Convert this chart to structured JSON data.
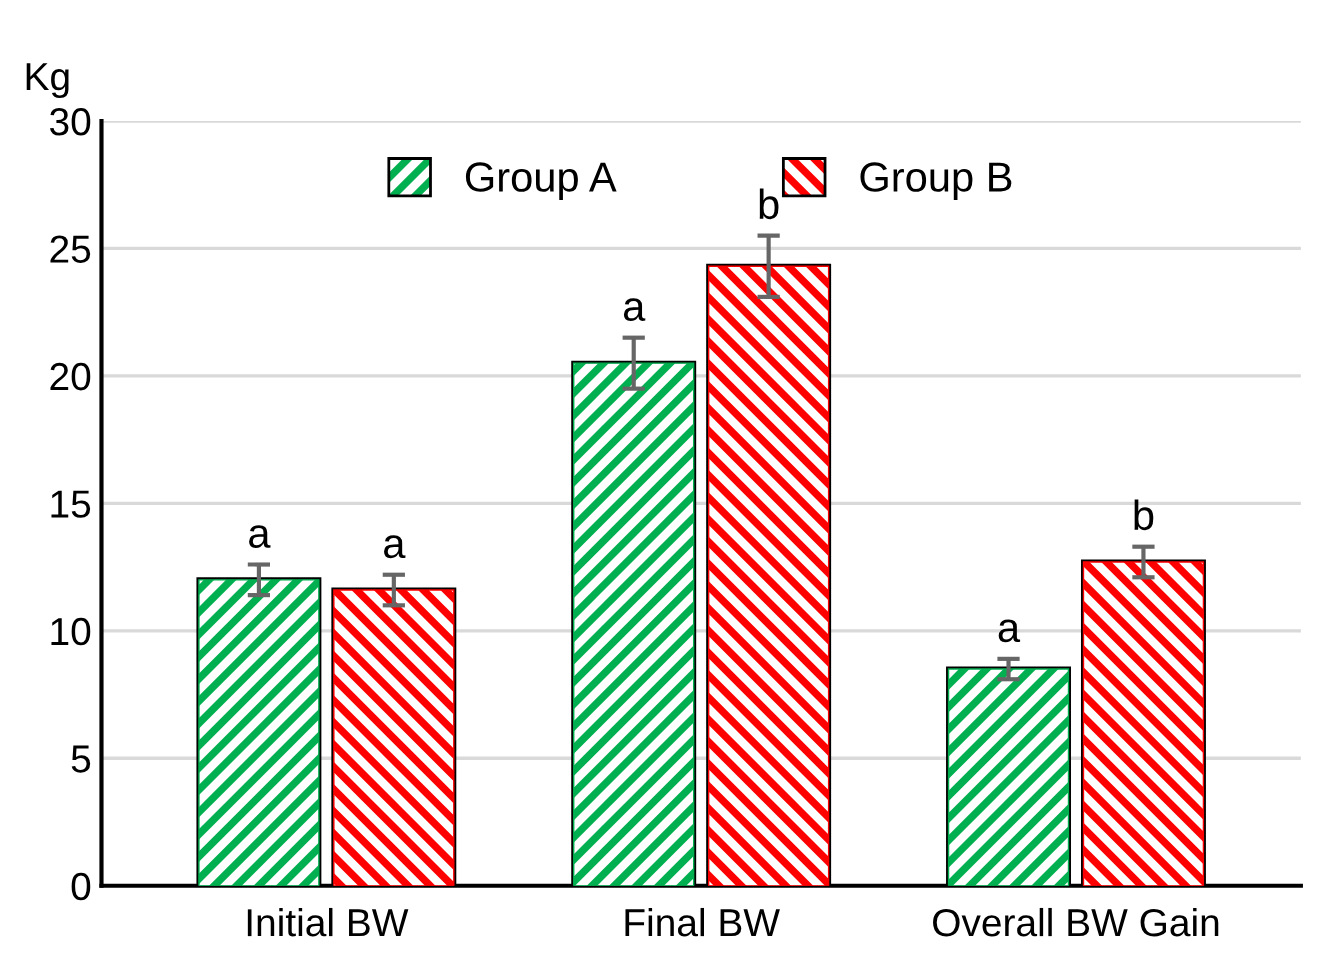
{
  "chart_data": {
    "type": "bar",
    "ylabel": "Kg",
    "categories": [
      "Initial BW",
      "Final BW",
      "Overall BW Gain"
    ],
    "series": [
      {
        "name": "Group A",
        "color": "#00b050",
        "values": [
          12.0,
          20.5,
          8.5
        ],
        "errors": [
          0.6,
          1.0,
          0.4
        ]
      },
      {
        "name": "Group B",
        "color": "#ff0000",
        "values": [
          11.6,
          24.3,
          12.7
        ],
        "errors": [
          0.6,
          1.2,
          0.6
        ]
      }
    ],
    "ylim": [
      0,
      30
    ],
    "yticks": [
      0,
      5,
      10,
      15,
      20,
      25,
      30
    ],
    "grid": "y",
    "legend": "top",
    "annotations": [
      "a",
      "a",
      "a",
      "b",
      "a",
      "b"
    ]
  }
}
